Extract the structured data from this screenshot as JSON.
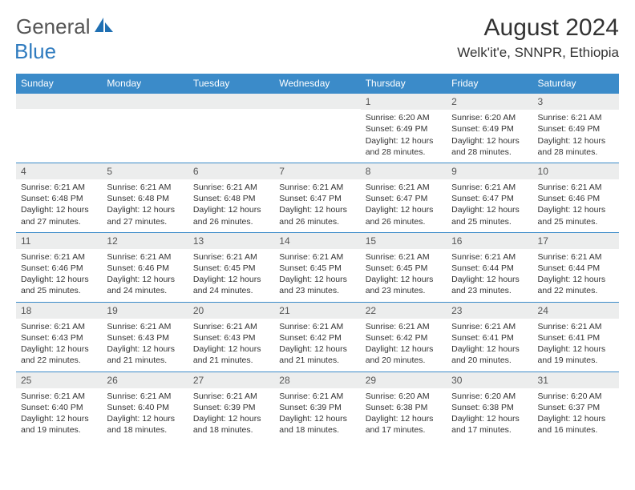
{
  "logo": {
    "general": "General",
    "blue": "Blue"
  },
  "title": "August 2024",
  "location": "Welk'it'e, SNNPR, Ethiopia",
  "colors": {
    "header_bg": "#3b8bc9",
    "header_fg": "#ffffff",
    "daynum_bg": "#eceded",
    "border": "#3b8bc9",
    "text": "#333333",
    "logo_grey": "#555555",
    "logo_blue": "#2f7bbf",
    "page_bg": "#ffffff"
  },
  "day_headers": [
    "Sunday",
    "Monday",
    "Tuesday",
    "Wednesday",
    "Thursday",
    "Friday",
    "Saturday"
  ],
  "weeks": [
    [
      {
        "n": "",
        "sunrise": "",
        "sunset": "",
        "daylight": ""
      },
      {
        "n": "",
        "sunrise": "",
        "sunset": "",
        "daylight": ""
      },
      {
        "n": "",
        "sunrise": "",
        "sunset": "",
        "daylight": ""
      },
      {
        "n": "",
        "sunrise": "",
        "sunset": "",
        "daylight": ""
      },
      {
        "n": "1",
        "sunrise": "Sunrise: 6:20 AM",
        "sunset": "Sunset: 6:49 PM",
        "daylight": "Daylight: 12 hours and 28 minutes."
      },
      {
        "n": "2",
        "sunrise": "Sunrise: 6:20 AM",
        "sunset": "Sunset: 6:49 PM",
        "daylight": "Daylight: 12 hours and 28 minutes."
      },
      {
        "n": "3",
        "sunrise": "Sunrise: 6:21 AM",
        "sunset": "Sunset: 6:49 PM",
        "daylight": "Daylight: 12 hours and 28 minutes."
      }
    ],
    [
      {
        "n": "4",
        "sunrise": "Sunrise: 6:21 AM",
        "sunset": "Sunset: 6:48 PM",
        "daylight": "Daylight: 12 hours and 27 minutes."
      },
      {
        "n": "5",
        "sunrise": "Sunrise: 6:21 AM",
        "sunset": "Sunset: 6:48 PM",
        "daylight": "Daylight: 12 hours and 27 minutes."
      },
      {
        "n": "6",
        "sunrise": "Sunrise: 6:21 AM",
        "sunset": "Sunset: 6:48 PM",
        "daylight": "Daylight: 12 hours and 26 minutes."
      },
      {
        "n": "7",
        "sunrise": "Sunrise: 6:21 AM",
        "sunset": "Sunset: 6:47 PM",
        "daylight": "Daylight: 12 hours and 26 minutes."
      },
      {
        "n": "8",
        "sunrise": "Sunrise: 6:21 AM",
        "sunset": "Sunset: 6:47 PM",
        "daylight": "Daylight: 12 hours and 26 minutes."
      },
      {
        "n": "9",
        "sunrise": "Sunrise: 6:21 AM",
        "sunset": "Sunset: 6:47 PM",
        "daylight": "Daylight: 12 hours and 25 minutes."
      },
      {
        "n": "10",
        "sunrise": "Sunrise: 6:21 AM",
        "sunset": "Sunset: 6:46 PM",
        "daylight": "Daylight: 12 hours and 25 minutes."
      }
    ],
    [
      {
        "n": "11",
        "sunrise": "Sunrise: 6:21 AM",
        "sunset": "Sunset: 6:46 PM",
        "daylight": "Daylight: 12 hours and 25 minutes."
      },
      {
        "n": "12",
        "sunrise": "Sunrise: 6:21 AM",
        "sunset": "Sunset: 6:46 PM",
        "daylight": "Daylight: 12 hours and 24 minutes."
      },
      {
        "n": "13",
        "sunrise": "Sunrise: 6:21 AM",
        "sunset": "Sunset: 6:45 PM",
        "daylight": "Daylight: 12 hours and 24 minutes."
      },
      {
        "n": "14",
        "sunrise": "Sunrise: 6:21 AM",
        "sunset": "Sunset: 6:45 PM",
        "daylight": "Daylight: 12 hours and 23 minutes."
      },
      {
        "n": "15",
        "sunrise": "Sunrise: 6:21 AM",
        "sunset": "Sunset: 6:45 PM",
        "daylight": "Daylight: 12 hours and 23 minutes."
      },
      {
        "n": "16",
        "sunrise": "Sunrise: 6:21 AM",
        "sunset": "Sunset: 6:44 PM",
        "daylight": "Daylight: 12 hours and 23 minutes."
      },
      {
        "n": "17",
        "sunrise": "Sunrise: 6:21 AM",
        "sunset": "Sunset: 6:44 PM",
        "daylight": "Daylight: 12 hours and 22 minutes."
      }
    ],
    [
      {
        "n": "18",
        "sunrise": "Sunrise: 6:21 AM",
        "sunset": "Sunset: 6:43 PM",
        "daylight": "Daylight: 12 hours and 22 minutes."
      },
      {
        "n": "19",
        "sunrise": "Sunrise: 6:21 AM",
        "sunset": "Sunset: 6:43 PM",
        "daylight": "Daylight: 12 hours and 21 minutes."
      },
      {
        "n": "20",
        "sunrise": "Sunrise: 6:21 AM",
        "sunset": "Sunset: 6:43 PM",
        "daylight": "Daylight: 12 hours and 21 minutes."
      },
      {
        "n": "21",
        "sunrise": "Sunrise: 6:21 AM",
        "sunset": "Sunset: 6:42 PM",
        "daylight": "Daylight: 12 hours and 21 minutes."
      },
      {
        "n": "22",
        "sunrise": "Sunrise: 6:21 AM",
        "sunset": "Sunset: 6:42 PM",
        "daylight": "Daylight: 12 hours and 20 minutes."
      },
      {
        "n": "23",
        "sunrise": "Sunrise: 6:21 AM",
        "sunset": "Sunset: 6:41 PM",
        "daylight": "Daylight: 12 hours and 20 minutes."
      },
      {
        "n": "24",
        "sunrise": "Sunrise: 6:21 AM",
        "sunset": "Sunset: 6:41 PM",
        "daylight": "Daylight: 12 hours and 19 minutes."
      }
    ],
    [
      {
        "n": "25",
        "sunrise": "Sunrise: 6:21 AM",
        "sunset": "Sunset: 6:40 PM",
        "daylight": "Daylight: 12 hours and 19 minutes."
      },
      {
        "n": "26",
        "sunrise": "Sunrise: 6:21 AM",
        "sunset": "Sunset: 6:40 PM",
        "daylight": "Daylight: 12 hours and 18 minutes."
      },
      {
        "n": "27",
        "sunrise": "Sunrise: 6:21 AM",
        "sunset": "Sunset: 6:39 PM",
        "daylight": "Daylight: 12 hours and 18 minutes."
      },
      {
        "n": "28",
        "sunrise": "Sunrise: 6:21 AM",
        "sunset": "Sunset: 6:39 PM",
        "daylight": "Daylight: 12 hours and 18 minutes."
      },
      {
        "n": "29",
        "sunrise": "Sunrise: 6:20 AM",
        "sunset": "Sunset: 6:38 PM",
        "daylight": "Daylight: 12 hours and 17 minutes."
      },
      {
        "n": "30",
        "sunrise": "Sunrise: 6:20 AM",
        "sunset": "Sunset: 6:38 PM",
        "daylight": "Daylight: 12 hours and 17 minutes."
      },
      {
        "n": "31",
        "sunrise": "Sunrise: 6:20 AM",
        "sunset": "Sunset: 6:37 PM",
        "daylight": "Daylight: 12 hours and 16 minutes."
      }
    ]
  ]
}
